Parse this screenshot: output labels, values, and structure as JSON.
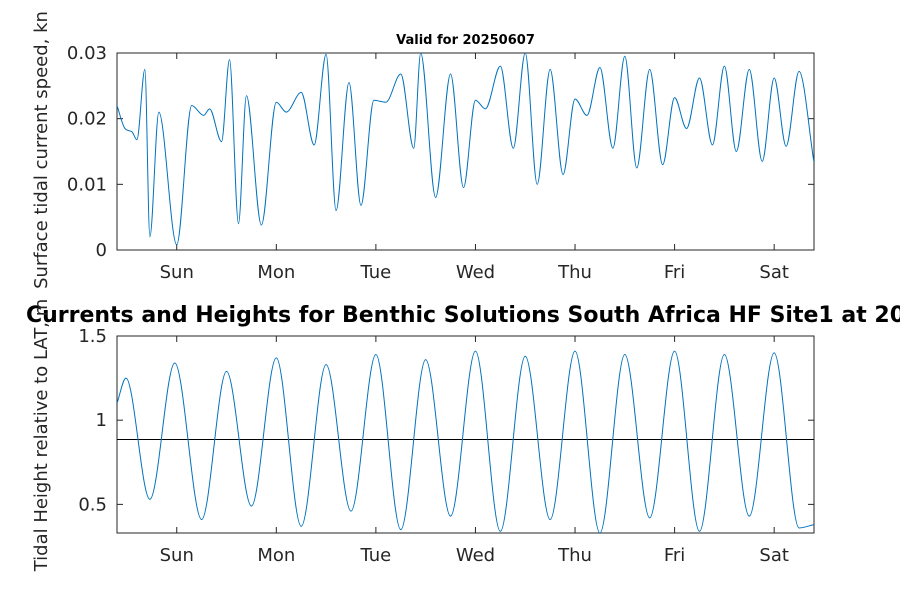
{
  "chart_data": [
    {
      "type": "line",
      "title": "Valid for 20250607",
      "xlabel": "",
      "ylabel": "Surface tidal current speed, kn",
      "xlim": [
        0,
        7
      ],
      "ylim": [
        0,
        0.03
      ],
      "x_tick_labels": [
        "Sun",
        "Mon",
        "Tue",
        "Wed",
        "Thu",
        "Fri",
        "Sat"
      ],
      "y_ticks": [
        0,
        0.01,
        0.02,
        0.03
      ],
      "y_tick_labels": [
        "0",
        "0.01",
        "0.02",
        "0.03"
      ],
      "grid": false,
      "series": [
        {
          "color": "#0072BD",
          "x": [
            0.0,
            0.08,
            0.15,
            0.2,
            0.28,
            0.33,
            0.42,
            0.6,
            0.75,
            0.87,
            0.93,
            1.05,
            1.13,
            1.22,
            1.3,
            1.45,
            1.6,
            1.7,
            1.85,
            1.98,
            2.1,
            2.2,
            2.33,
            2.45,
            2.58,
            2.7,
            2.85,
            2.98,
            3.05,
            3.2,
            3.35,
            3.48,
            3.6,
            3.7,
            3.85,
            3.98,
            4.1,
            4.22,
            4.35,
            4.48,
            4.6,
            4.72,
            4.85,
            4.98,
            5.1,
            5.22,
            5.35,
            5.48,
            5.6,
            5.72,
            5.85,
            5.98,
            6.1,
            6.22,
            6.35,
            6.48,
            6.6,
            6.72,
            6.85,
            7.0
          ],
          "y": [
            0.022,
            0.0185,
            0.018,
            0.0168,
            0.0275,
            0.002,
            0.021,
            0.0008,
            0.022,
            0.0205,
            0.0215,
            0.0165,
            0.029,
            0.004,
            0.0235,
            0.0038,
            0.0225,
            0.021,
            0.024,
            0.016,
            0.0298,
            0.006,
            0.0255,
            0.0068,
            0.0228,
            0.0225,
            0.0268,
            0.0155,
            0.03,
            0.008,
            0.0268,
            0.0095,
            0.0228,
            0.0215,
            0.028,
            0.0155,
            0.03,
            0.01,
            0.0275,
            0.0115,
            0.023,
            0.0205,
            0.0278,
            0.0155,
            0.0295,
            0.0125,
            0.0275,
            0.013,
            0.0232,
            0.0185,
            0.0262,
            0.016,
            0.028,
            0.015,
            0.0275,
            0.0135,
            0.0262,
            0.0158,
            0.0272,
            0.0133
          ]
        }
      ]
    },
    {
      "type": "line",
      "title": "Currents and Heights for Benthic Solutions South Africa HF Site1 at 20",
      "xlabel": "",
      "ylabel": "Tidal Height relative to LAT, m",
      "xlim": [
        0,
        7
      ],
      "ylim": [
        0.33,
        1.5
      ],
      "x_tick_labels": [
        "Sun",
        "Mon",
        "Tue",
        "Wed",
        "Thu",
        "Fri",
        "Sat"
      ],
      "y_ticks": [
        0.5,
        1,
        1.5
      ],
      "y_tick_labels": [
        "0.5",
        "1",
        "1.5"
      ],
      "grid": false,
      "reference_line": 0.885,
      "series": [
        {
          "color": "#0072BD",
          "x": [
            0.0,
            0.09,
            0.33,
            0.58,
            0.85,
            1.1,
            1.35,
            1.6,
            1.85,
            2.1,
            2.35,
            2.6,
            2.85,
            3.1,
            3.35,
            3.6,
            3.85,
            4.1,
            4.35,
            4.6,
            4.85,
            5.1,
            5.35,
            5.6,
            5.85,
            6.1,
            6.35,
            6.6,
            6.85,
            7.0
          ],
          "y": [
            1.1,
            1.25,
            0.53,
            1.34,
            0.41,
            1.29,
            0.49,
            1.37,
            0.37,
            1.33,
            0.46,
            1.39,
            0.35,
            1.36,
            0.43,
            1.41,
            0.34,
            1.38,
            0.41,
            1.41,
            0.33,
            1.39,
            0.42,
            1.41,
            0.34,
            1.39,
            0.43,
            1.4,
            0.36,
            0.38
          ]
        }
      ]
    }
  ]
}
